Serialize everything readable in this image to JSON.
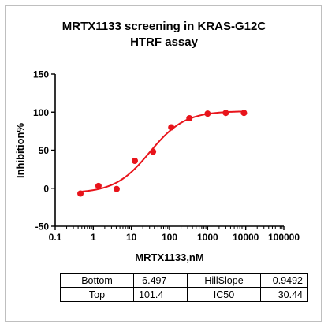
{
  "chart_data": {
    "type": "scatter",
    "title_line1": "MRTX1133 screening in KRAS-G12C",
    "title_line2": "HTRF assay",
    "xlabel": "MRTX1133,nM",
    "ylabel": "Inhibition%",
    "x_scale": "log",
    "xlim": [
      0.1,
      100000
    ],
    "ylim": [
      -50,
      150
    ],
    "x_ticks": [
      "0.1",
      "1",
      "10",
      "100",
      "1000",
      "10000",
      "100000"
    ],
    "x_tick_values": [
      0.1,
      1,
      10,
      100,
      1000,
      10000,
      100000
    ],
    "y_ticks": [
      "-50",
      "0",
      "50",
      "100",
      "150"
    ],
    "y_tick_values": [
      -50,
      0,
      50,
      100,
      150
    ],
    "grid": false,
    "series": [
      {
        "x": [
          0.46,
          1.37,
          4.1,
          12.3,
          37,
          111,
          333,
          1000,
          3000,
          9000
        ],
        "y": [
          -7,
          3,
          -1,
          36,
          48,
          80,
          92,
          98,
          99,
          99
        ],
        "color": "#e8141b"
      }
    ],
    "fit": {
      "model": "four-parameter logistic",
      "bottom": -6.497,
      "top": 101.4,
      "hillslope": 0.9492,
      "ic50": 30.44,
      "x_range": [
        0.46,
        9000
      ],
      "color": "#e8141b"
    }
  },
  "results_table": [
    {
      "label1": "Bottom",
      "value1": "-6.497",
      "label2": "HillSlope",
      "value2": "0.9492"
    },
    {
      "label1": "Top",
      "value1": "101.4",
      "label2": "IC50",
      "value2": "30.44"
    }
  ]
}
